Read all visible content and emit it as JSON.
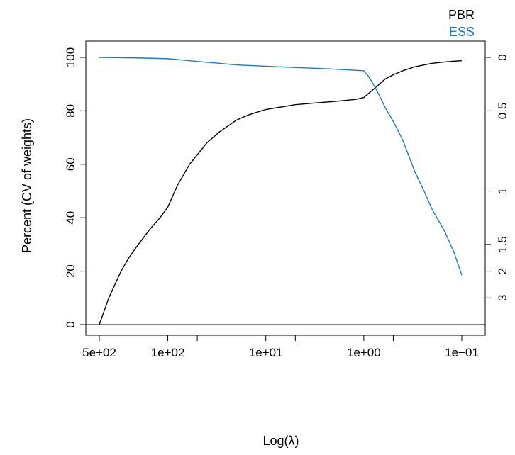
{
  "chart_data": {
    "type": "line",
    "xlabel": "Log(λ)",
    "ylabel": "Percent  (CV of weights)",
    "x_scale": "log-reversed",
    "xlim": [
      550,
      0.085
    ],
    "ylim": [
      0,
      100
    ],
    "x_ticks_major": [
      {
        "value": 500,
        "label": "5e+02"
      },
      {
        "value": 100,
        "label": "1e+02"
      },
      {
        "value": 10,
        "label": "1e+01"
      },
      {
        "value": 1,
        "label": "1e+00"
      },
      {
        "value": 0.1,
        "label": "1e−01"
      }
    ],
    "x_ticks_minor": [
      50,
      5,
      0.5
    ],
    "y_ticks": [
      0,
      20,
      40,
      60,
      80,
      100
    ],
    "right_axis": {
      "ticks": [
        {
          "label": "0",
          "percent": 100
        },
        {
          "label": "0.5",
          "percent": 80
        },
        {
          "label": "1",
          "percent": 50
        },
        {
          "label": "1.5",
          "percent": 30
        },
        {
          "label": "2",
          "percent": 20
        },
        {
          "label": "3",
          "percent": 10
        }
      ]
    },
    "baseline": 0,
    "legend": {
      "position": "top-right",
      "entries": [
        "PBR",
        "ESS"
      ]
    },
    "grid": false,
    "colors": {
      "PBR": "#000000",
      "ESS": "#1f78c8"
    },
    "series": [
      {
        "name": "PBR",
        "x": [
          500,
          400,
          300,
          250,
          200,
          150,
          120,
          100,
          80,
          60,
          40,
          30,
          20,
          15,
          10,
          5,
          3,
          2,
          1.2,
          1.0,
          0.8,
          0.6,
          0.5,
          0.4,
          0.3,
          0.2,
          0.15,
          0.1
        ],
        "y": [
          0,
          10,
          20,
          25,
          30,
          36,
          40,
          44,
          52,
          60,
          68,
          72,
          76.5,
          78.5,
          80.5,
          82.3,
          83,
          83.5,
          84.3,
          85,
          88,
          92,
          93.5,
          95,
          96.5,
          97.8,
          98.3,
          98.8
        ]
      },
      {
        "name": "ESS",
        "x": [
          500,
          200,
          100,
          70,
          50,
          30,
          20,
          10,
          5,
          3,
          2,
          1.0,
          0.9,
          0.8,
          0.7,
          0.6,
          0.5,
          0.4,
          0.3,
          0.25,
          0.2,
          0.15,
          0.12,
          0.1
        ],
        "y": [
          100,
          99.8,
          99.5,
          99,
          98.5,
          97.8,
          97.2,
          96.7,
          96.2,
          95.9,
          95.6,
          95,
          93,
          90,
          86,
          81,
          76,
          69,
          57,
          51,
          43,
          35,
          27,
          18.5
        ]
      }
    ]
  }
}
